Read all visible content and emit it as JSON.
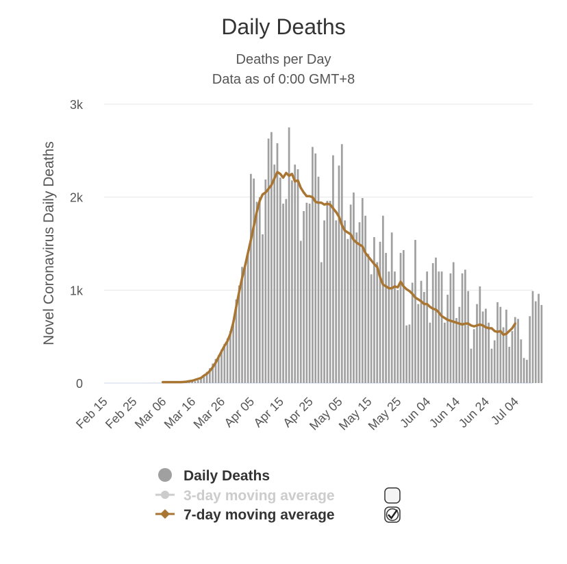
{
  "chart_data": {
    "type": "bar",
    "title": "Daily Deaths",
    "subtitle": [
      "Deaths per Day",
      "Data as of 0:00 GMT+8"
    ],
    "ylabel": "Novel Coronavirus Daily Deaths",
    "xlabel": "",
    "ylim": [
      0,
      3000
    ],
    "yticks": [
      {
        "value": 0,
        "label": "0"
      },
      {
        "value": 1000,
        "label": "1k"
      },
      {
        "value": 2000,
        "label": "2k"
      },
      {
        "value": 3000,
        "label": "3k"
      }
    ],
    "x_start": "2020-02-15",
    "x_end": "2020-07-10",
    "xticks": [
      {
        "date": "2020-02-15",
        "label": "Feb 15"
      },
      {
        "date": "2020-02-25",
        "label": "Feb 25"
      },
      {
        "date": "2020-03-06",
        "label": "Mar 06"
      },
      {
        "date": "2020-03-16",
        "label": "Mar 16"
      },
      {
        "date": "2020-03-26",
        "label": "Mar 26"
      },
      {
        "date": "2020-04-05",
        "label": "Apr 05"
      },
      {
        "date": "2020-04-15",
        "label": "Apr 15"
      },
      {
        "date": "2020-04-25",
        "label": "Apr 25"
      },
      {
        "date": "2020-05-05",
        "label": "May 05"
      },
      {
        "date": "2020-05-15",
        "label": "May 15"
      },
      {
        "date": "2020-05-25",
        "label": "May 25"
      },
      {
        "date": "2020-06-04",
        "label": "Jun 04"
      },
      {
        "date": "2020-06-14",
        "label": "Jun 14"
      },
      {
        "date": "2020-06-24",
        "label": "Jun 24"
      },
      {
        "date": "2020-07-04",
        "label": "Jul 04"
      }
    ],
    "grid": true,
    "legend_position": "bottom",
    "series": [
      {
        "name": "Daily Deaths",
        "kind": "bar",
        "color": "#a0a0a0",
        "start_date": "2020-03-01",
        "values": [
          1,
          1,
          1,
          1,
          1,
          1,
          1,
          1,
          1,
          1,
          2,
          3,
          5,
          8,
          10,
          15,
          20,
          30,
          50,
          80,
          120,
          160,
          210,
          260,
          300,
          360,
          420,
          480,
          560,
          640,
          900,
          1050,
          1250,
          1240,
          1390,
          2250,
          2200,
          1950,
          2000,
          1600,
          2190,
          2630,
          2700,
          2350,
          2580,
          2210,
          1930,
          1980,
          2750,
          2180,
          2350,
          2300,
          1530,
          1850,
          1940,
          1930,
          2540,
          2470,
          2220,
          1300,
          1750,
          1960,
          1960,
          2450,
          1750,
          2340,
          2570,
          1750,
          1550,
          1920,
          2050,
          1620,
          1730,
          1990,
          1800,
          1390,
          1170,
          1570,
          1300,
          1520,
          1800,
          1400,
          1200,
          1620,
          1200,
          1000,
          1400,
          1430,
          620,
          630,
          1080,
          1540,
          850,
          1100,
          980,
          1200,
          650,
          1290,
          1350,
          1200,
          1200,
          650,
          950,
          1180,
          1300,
          700,
          820,
          1180,
          1220,
          990,
          370,
          580,
          850,
          1040,
          770,
          800,
          650,
          370,
          460,
          870,
          820,
          600,
          790,
          390,
          560,
          710,
          690,
          470,
          270,
          250,
          720,
          990,
          880,
          960,
          840
        ]
      },
      {
        "name": "3-day moving average",
        "kind": "line",
        "color": "#cccccc",
        "hidden": true
      },
      {
        "name": "7-day moving average",
        "kind": "line",
        "color": "#a87532",
        "start_date": "2020-03-06",
        "values": [
          10,
          10,
          10,
          10,
          10,
          10,
          10,
          12,
          15,
          20,
          25,
          35,
          45,
          55,
          80,
          100,
          130,
          170,
          220,
          280,
          340,
          400,
          450,
          530,
          650,
          820,
          980,
          1130,
          1260,
          1400,
          1540,
          1690,
          1840,
          1960,
          2030,
          2050,
          2090,
          2130,
          2200,
          2270,
          2250,
          2210,
          2260,
          2230,
          2250,
          2170,
          2180,
          2100,
          2050,
          2010,
          2010,
          2000,
          1950,
          1940,
          1940,
          1920,
          1930,
          1920,
          1880,
          1840,
          1790,
          1700,
          1640,
          1620,
          1600,
          1540,
          1510,
          1490,
          1470,
          1400,
          1360,
          1320,
          1280,
          1250,
          1140,
          1060,
          1040,
          1020,
          1020,
          1040,
          1030,
          1090,
          1040,
          1010,
          990,
          960,
          920,
          900,
          880,
          850,
          850,
          820,
          800,
          790,
          760,
          720,
          700,
          680,
          670,
          660,
          650,
          640,
          630,
          640,
          640,
          620,
          610,
          620,
          630,
          620,
          600,
          590,
          590,
          560,
          550,
          560,
          520,
          530,
          560,
          590,
          640
        ]
      }
    ]
  },
  "legend": {
    "items": [
      {
        "label": "Daily Deaths",
        "color": "#a0a0a0",
        "symbol": "circle",
        "text_color": "#333333",
        "toggle": "none"
      },
      {
        "label": "3-day moving average",
        "color": "#cccccc",
        "symbol": "circle-line",
        "text_color": "#cccccc",
        "toggle": "unchecked"
      },
      {
        "label": "7-day moving average",
        "color": "#a87532",
        "symbol": "diamond-line",
        "text_color": "#333333",
        "toggle": "checked"
      }
    ]
  }
}
